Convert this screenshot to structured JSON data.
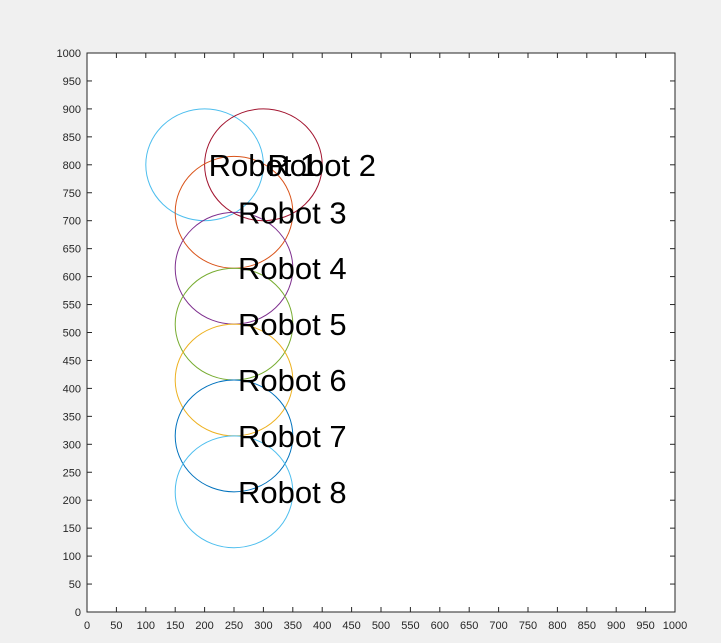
{
  "chart_data": {
    "type": "scatter",
    "title": "",
    "xlabel": "",
    "ylabel": "",
    "xlim": [
      0,
      1000
    ],
    "ylim": [
      0,
      1000
    ],
    "xticks": [
      0,
      50,
      100,
      150,
      200,
      250,
      300,
      350,
      400,
      450,
      500,
      550,
      600,
      650,
      700,
      750,
      800,
      850,
      900,
      950,
      1000
    ],
    "yticks": [
      0,
      50,
      100,
      150,
      200,
      250,
      300,
      350,
      400,
      450,
      500,
      550,
      600,
      650,
      700,
      750,
      800,
      850,
      900,
      950,
      1000
    ],
    "grid": false,
    "legend": "none",
    "circle_radius": 100,
    "robots": [
      {
        "label": "Robot 1",
        "x": 200,
        "y": 800,
        "color": "#4DBEEE"
      },
      {
        "label": "Robot 2",
        "x": 300,
        "y": 800,
        "color": "#A2142F"
      },
      {
        "label": "Robot 3",
        "x": 250,
        "y": 715,
        "color": "#D95319"
      },
      {
        "label": "Robot 4",
        "x": 250,
        "y": 615,
        "color": "#7E2F8E"
      },
      {
        "label": "Robot 5",
        "x": 250,
        "y": 515,
        "color": "#77AC30"
      },
      {
        "label": "Robot 6",
        "x": 250,
        "y": 415,
        "color": "#EDB120"
      },
      {
        "label": "Robot 7",
        "x": 250,
        "y": 315,
        "color": "#0072BD"
      },
      {
        "label": "Robot 8",
        "x": 250,
        "y": 215,
        "color": "#4DBEEE"
      }
    ]
  }
}
